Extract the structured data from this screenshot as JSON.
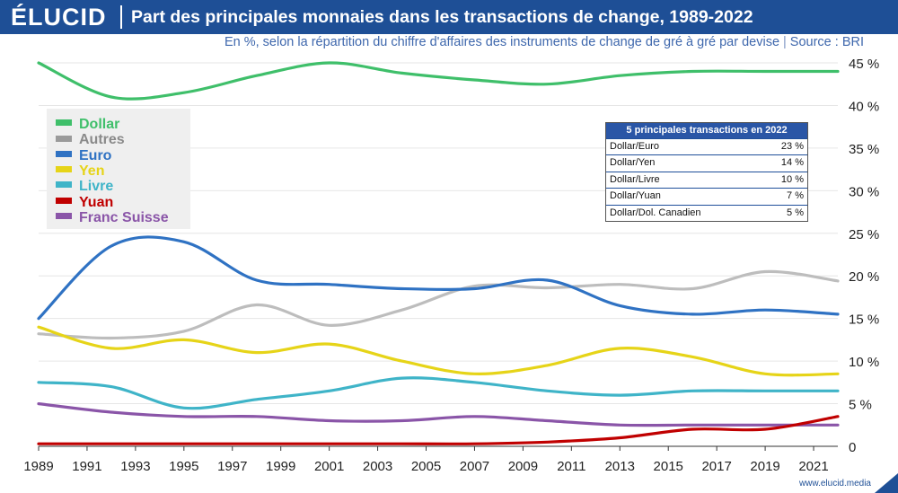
{
  "header": {
    "logo": "ÉLUCID",
    "title": "Part des principales monnaies dans les transactions de change, 1989-2022"
  },
  "subtitle": {
    "text": "En %, selon la répartition du chiffre d'affaires des instruments de change de gré à gré par devise",
    "separator": "|",
    "source": "Source : BRI"
  },
  "footer": {
    "url": "www.elucid.media"
  },
  "colors": {
    "header_bg": "#1e4f96",
    "grid": "#e6e6e6"
  },
  "top5": {
    "title": "5 principales transactions en 2022",
    "rows": [
      {
        "pair": "Dollar/Euro",
        "value": "23 %"
      },
      {
        "pair": "Dollar/Yen",
        "value": "14 %"
      },
      {
        "pair": "Dollar/Livre",
        "value": "10 %"
      },
      {
        "pair": "Dollar/Yuan",
        "value": "7 %"
      },
      {
        "pair": "Dollar/Dol. Canadien",
        "value": "5 %"
      }
    ]
  },
  "chart_data": {
    "type": "line",
    "x_ticks": [
      "1989",
      "1991",
      "1993",
      "1995",
      "1997",
      "1999",
      "2001",
      "2003",
      "2005",
      "2007",
      "2009",
      "2011",
      "2013",
      "2015",
      "2017",
      "2019",
      "2021"
    ],
    "y_ticks": [
      "0",
      "5 %",
      "10 %",
      "15 %",
      "20 %",
      "25 %",
      "30 %",
      "35 %",
      "40 %",
      "45 %"
    ],
    "xlim": [
      1989,
      2022
    ],
    "ylim": [
      0,
      45
    ],
    "legend_position": "top-left",
    "grid": "horizontal",
    "series": [
      {
        "name": "Dollar",
        "color": "#3fbf6a",
        "x": [
          1989,
          1992,
          1995,
          1998,
          2001,
          2004,
          2007,
          2010,
          2013,
          2016,
          2019,
          2022
        ],
        "y": [
          45,
          41,
          41.5,
          43.5,
          45,
          43.8,
          43,
          42.5,
          43.5,
          44,
          44,
          44
        ]
      },
      {
        "name": "Autres",
        "color": "#bdbdbd",
        "x": [
          1989,
          1992,
          1995,
          1998,
          2001,
          2004,
          2007,
          2010,
          2013,
          2016,
          2019,
          2022
        ],
        "y": [
          13.2,
          12.7,
          13.5,
          16.6,
          14.2,
          16,
          18.8,
          18.6,
          19,
          18.5,
          20.5,
          19.4
        ]
      },
      {
        "name": "Euro",
        "color": "#2f72c3",
        "x": [
          1989,
          1992,
          1995,
          1998,
          2001,
          2004,
          2007,
          2010,
          2013,
          2016,
          2019,
          2022
        ],
        "y": [
          15,
          23.5,
          24,
          19.5,
          19,
          18.5,
          18.5,
          19.5,
          16.5,
          15.5,
          16,
          15.5
        ]
      },
      {
        "name": "Yen",
        "color": "#e6d418",
        "x": [
          1989,
          1992,
          1995,
          1998,
          2001,
          2004,
          2007,
          2010,
          2013,
          2016,
          2019,
          2022
        ],
        "y": [
          14,
          11.5,
          12.5,
          11,
          12,
          10,
          8.5,
          9.5,
          11.5,
          10.5,
          8.5,
          8.5
        ]
      },
      {
        "name": "Livre",
        "color": "#3fb4c8",
        "x": [
          1989,
          1992,
          1995,
          1998,
          2001,
          2004,
          2007,
          2010,
          2013,
          2016,
          2019,
          2022
        ],
        "y": [
          7.5,
          7,
          4.5,
          5.5,
          6.5,
          8,
          7.5,
          6.5,
          6,
          6.5,
          6.5,
          6.5
        ]
      },
      {
        "name": "Yuan",
        "color": "#c00000",
        "x": [
          1989,
          1992,
          1995,
          1998,
          2001,
          2004,
          2007,
          2010,
          2013,
          2016,
          2019,
          2022
        ],
        "y": [
          0.3,
          0.3,
          0.3,
          0.3,
          0.3,
          0.3,
          0.3,
          0.5,
          1,
          2,
          2,
          3.5
        ]
      },
      {
        "name": "Franc Suisse",
        "color": "#8a55a8",
        "x": [
          1989,
          1992,
          1995,
          1998,
          2001,
          2004,
          2007,
          2010,
          2013,
          2016,
          2019,
          2022
        ],
        "y": [
          5,
          4,
          3.5,
          3.5,
          3,
          3,
          3.5,
          3,
          2.5,
          2.5,
          2.5,
          2.5
        ]
      }
    ]
  }
}
